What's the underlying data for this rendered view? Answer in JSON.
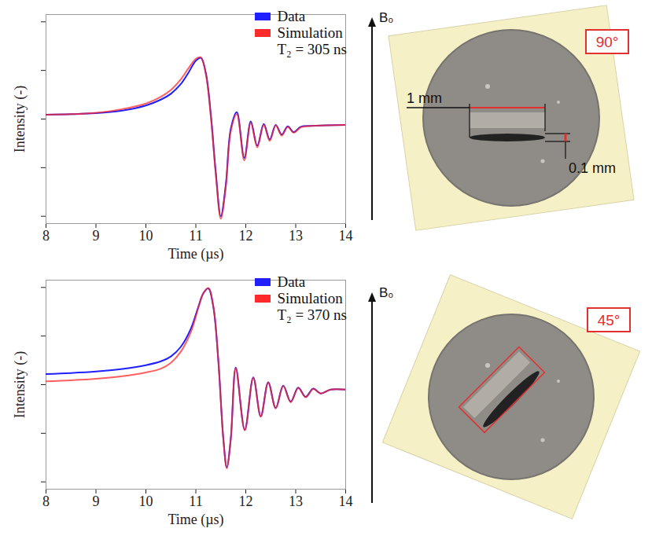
{
  "chart_data": [
    {
      "type": "line",
      "x_label": "Time (µs)",
      "y_label": "Intensity (-)",
      "xlim": [
        8,
        14
      ],
      "xticks": [
        8,
        9,
        10,
        11,
        12,
        13,
        14
      ],
      "ylim": [
        -2.15,
        2.15
      ],
      "yticks": [
        -2,
        -1,
        0,
        1,
        2
      ],
      "tick_labels": "x",
      "legend": "top-right",
      "x": [
        8,
        8.5,
        9,
        9.5,
        10,
        10.3,
        10.5,
        10.7,
        10.85,
        11,
        11.1,
        11.2,
        11.3,
        11.4,
        11.5,
        11.6,
        11.7,
        11.82,
        11.97,
        12.1,
        12.23,
        12.36,
        12.48,
        12.6,
        12.72,
        12.84,
        12.96,
        13.1,
        13.3,
        13.6,
        14
      ],
      "series": [
        {
          "name": "Data",
          "color": "#1f1fff",
          "values": [
            0.09,
            0.1,
            0.12,
            0.17,
            0.28,
            0.4,
            0.52,
            0.72,
            0.95,
            1.2,
            1.26,
            0.95,
            0.1,
            -1.1,
            -2.0,
            -1.35,
            -0.2,
            0.14,
            -0.8,
            -0.05,
            -0.55,
            -0.1,
            -0.42,
            -0.12,
            -0.32,
            -0.15,
            -0.27,
            -0.16,
            -0.14,
            -0.13,
            -0.12
          ]
        },
        {
          "name": "Simulation",
          "color": "#ff2a2a",
          "annotation": "T₂ = 305 ns",
          "values": [
            0.09,
            0.1,
            0.13,
            0.2,
            0.32,
            0.46,
            0.6,
            0.82,
            1.04,
            1.24,
            1.27,
            0.92,
            0.05,
            -1.15,
            -2.05,
            -1.4,
            -0.25,
            0.1,
            -0.85,
            -0.08,
            -0.58,
            -0.12,
            -0.45,
            -0.13,
            -0.34,
            -0.16,
            -0.28,
            -0.17,
            -0.14,
            -0.13,
            -0.12
          ]
        }
      ]
    },
    {
      "type": "line",
      "x_label": "Time (µs)",
      "y_label": "Intensity (-)",
      "xlim": [
        8,
        14
      ],
      "xticks": [
        8,
        9,
        10,
        11,
        12,
        13,
        14
      ],
      "ylim": [
        -2.15,
        2.15
      ],
      "yticks": [
        -2,
        -1,
        0,
        1,
        2
      ],
      "tick_labels": "x",
      "legend": "top-right",
      "x": [
        8,
        8.5,
        9,
        9.5,
        10,
        10.3,
        10.5,
        10.7,
        10.9,
        11.05,
        11.15,
        11.25,
        11.35,
        11.45,
        11.55,
        11.62,
        11.7,
        11.8,
        11.98,
        12.15,
        12.3,
        12.45,
        12.6,
        12.75,
        12.9,
        13.05,
        13.2,
        13.35,
        13.5,
        13.7,
        14
      ],
      "series": [
        {
          "name": "Data",
          "color": "#1f1fff",
          "values": [
            0.22,
            0.24,
            0.27,
            0.32,
            0.4,
            0.48,
            0.58,
            0.78,
            1.15,
            1.6,
            1.88,
            1.98,
            1.6,
            0.5,
            -1.1,
            -1.7,
            -1.1,
            0.35,
            -0.93,
            0.15,
            -0.65,
            0.05,
            -0.48,
            -0.02,
            -0.35,
            -0.06,
            -0.25,
            -0.08,
            -0.18,
            -0.1,
            -0.1
          ]
        },
        {
          "name": "Simulation",
          "color": "#ff2a2a",
          "annotation": "T₂ = 370 ns",
          "values": [
            0.07,
            0.09,
            0.12,
            0.17,
            0.25,
            0.33,
            0.45,
            0.68,
            1.08,
            1.58,
            1.88,
            1.99,
            1.62,
            0.5,
            -1.12,
            -1.72,
            -1.12,
            0.34,
            -0.94,
            0.14,
            -0.66,
            0.04,
            -0.49,
            -0.03,
            -0.36,
            -0.07,
            -0.26,
            -0.09,
            -0.18,
            -0.1,
            -0.1
          ]
        }
      ]
    }
  ],
  "sample_images": [
    {
      "field_label": "B₀",
      "angle": {
        "value": 90,
        "label": "90°"
      },
      "dimension_labels": [
        "1 mm",
        "0.1 mm"
      ]
    },
    {
      "field_label": "B₀",
      "angle": {
        "value": 45,
        "label": "45°"
      }
    }
  ]
}
